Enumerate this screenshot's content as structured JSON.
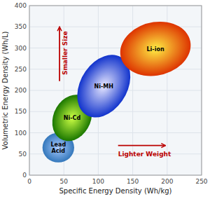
{
  "chart_data": {
    "type": "ellipse",
    "xlabel": "Specific Energy Density (Wh/kg)",
    "ylabel": "Volumetric Energy Density (Wh/L)",
    "xlim": [
      0,
      250
    ],
    "ylim": [
      0,
      400
    ],
    "xticks": [
      0,
      50,
      100,
      150,
      200,
      250
    ],
    "yticks": [
      0,
      50,
      100,
      150,
      200,
      250,
      300,
      350,
      400
    ],
    "grid": true,
    "series": [
      {
        "name": "Lead\nAcid",
        "cx": 42,
        "cy": 65,
        "width": 46,
        "height": 70,
        "angle": 0,
        "color": "#3377bb",
        "center_color": "#aaccff"
      },
      {
        "name": "Ni-Cd",
        "cx": 62,
        "cy": 135,
        "width": 56,
        "height": 110,
        "angle": -8,
        "color": "#1a7700",
        "center_color": "#ccff44"
      },
      {
        "name": "Ni-MH",
        "cx": 108,
        "cy": 210,
        "width": 72,
        "height": 150,
        "angle": -12,
        "color": "#1133cc",
        "center_color": "#e8e8ff"
      },
      {
        "name": "Li-ion",
        "cx": 183,
        "cy": 298,
        "width": 100,
        "height": 130,
        "angle": -15,
        "color": "#dd3300",
        "center_color": "#ffee44"
      }
    ],
    "annotations": [
      {
        "text": "Smaller Size",
        "color": "#bb0000"
      },
      {
        "text": "Lighter Weight",
        "color": "#bb0000"
      }
    ]
  }
}
